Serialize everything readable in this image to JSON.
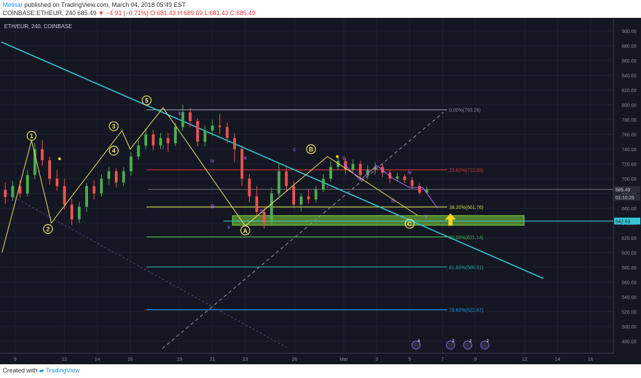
{
  "header": {
    "author": "Melisar",
    "published": "published on TradingView.com, March 04, 2018 05:49 EST",
    "symbol": "COINBASE:ETHEUR, 240",
    "last": "685.49",
    "change": "▼ −4.93 (−0.71%)",
    "ohlc": "O:681.43 H:689.69 L:681.43 C:685.49"
  },
  "legend_symbol": "ETH/EUR, 240, COINBASE",
  "footer": {
    "created": "Created with",
    "brand": "TradingView"
  },
  "colors": {
    "background": "#141722",
    "up_candle": "#26a69a",
    "up_candle_bright": "#4caf50",
    "down_candle": "#ef5350",
    "trendline": "#35c6d6",
    "wave_count": "#f2e56a",
    "sub_wave": "#b86bff",
    "zone": "#7fd63a"
  },
  "chart_data": {
    "type": "candlestick",
    "ylim": [
      480,
      910
    ],
    "y_ticks": [
      "900.00",
      "880.00",
      "860.00",
      "840.00",
      "820.00",
      "800.00",
      "780.00",
      "760.00",
      "740.00",
      "720.00",
      "700.00",
      "680.00",
      "660.00",
      "640.00",
      "620.00",
      "600.00",
      "580.00",
      "560.00",
      "540.00",
      "520.00",
      "500.00",
      "480.00"
    ],
    "x_ticks": [
      "9",
      "12",
      "14",
      "16",
      "19",
      "21",
      "23",
      "26",
      "Mar",
      "3",
      "5",
      "7",
      "9",
      "12",
      "14",
      "16"
    ],
    "price_labels": [
      {
        "text": "685.49",
        "price": 685.49,
        "color": "#8a8f99"
      },
      {
        "text": "01:10:25",
        "price": 675.0,
        "color": "#8a8f99"
      },
      {
        "text": "642.63",
        "price": 642.63,
        "color": "#35c6d6"
      }
    ],
    "fib_levels": [
      {
        "label": "0.00%(793.28)",
        "price": 793.28,
        "color": "#8a8f99"
      },
      {
        "label": "23.60%(712.03)",
        "price": 712.03,
        "color": "#d13b3b"
      },
      {
        "label": "38.20%(661.76)",
        "price": 661.76,
        "color": "#c7d34d"
      },
      {
        "label": "50.00%(621.14)",
        "price": 621.14,
        "color": "#4caf50"
      },
      {
        "label": "61.80%(580.51)",
        "price": 580.51,
        "color": "#26a69a"
      },
      {
        "label": "78.60%(522.67)",
        "price": 522.67,
        "color": "#2196f3"
      }
    ],
    "zone": {
      "low": 637,
      "high": 650
    },
    "wave_labels": [
      {
        "text": "1",
        "date": "Feb 10",
        "price": 758
      },
      {
        "text": "2",
        "date": "Feb 11",
        "price": 632
      },
      {
        "text": "3",
        "date": "Feb 15",
        "price": 771
      },
      {
        "text": "4",
        "date": "Feb 15",
        "price": 738
      },
      {
        "text": "5",
        "date": "Feb 17",
        "price": 806
      },
      {
        "text": "A",
        "date": "Feb 23",
        "price": 630
      },
      {
        "text": "B",
        "date": "Feb 27",
        "price": 740
      },
      {
        "text": "C",
        "date": "Mar 5",
        "price": 639
      }
    ],
    "sub_labels": [
      {
        "text": "i",
        "date": "Feb 18",
        "price": 740
      },
      {
        "text": "ii",
        "date": "Feb 19",
        "price": 786
      },
      {
        "text": "iii",
        "date": "Feb 21",
        "price": 660
      },
      {
        "text": "iv",
        "date": "Feb 21",
        "price": 722
      },
      {
        "text": "v",
        "date": "Feb 22",
        "price": 632
      },
      {
        "text": "a",
        "date": "Feb 23",
        "price": 726
      },
      {
        "text": "b",
        "date": "Feb 24",
        "price": 654
      },
      {
        "text": "c",
        "date": "Feb 26",
        "price": 737
      },
      {
        "text": "i",
        "date": "Feb 28",
        "price": 687
      },
      {
        "text": "ii",
        "date": "Mar 1",
        "price": 725
      },
      {
        "text": "iii",
        "date": "Mar 4",
        "price": 668
      },
      {
        "text": "iv",
        "date": "Mar 5",
        "price": 706
      },
      {
        "text": "v",
        "date": "Mar 6",
        "price": 647
      }
    ],
    "candles": [
      [
        722,
        700,
        730,
        695
      ],
      [
        700,
        685,
        710,
        678
      ],
      [
        685,
        675,
        695,
        666
      ],
      [
        675,
        690,
        697,
        670
      ],
      [
        690,
        680,
        698,
        674
      ],
      [
        680,
        705,
        712,
        676
      ],
      [
        705,
        740,
        748,
        700
      ],
      [
        740,
        725,
        752,
        718
      ],
      [
        725,
        700,
        730,
        692
      ],
      [
        700,
        690,
        712,
        684
      ],
      [
        690,
        665,
        700,
        658
      ],
      [
        665,
        645,
        672,
        637
      ],
      [
        645,
        662,
        668,
        640
      ],
      [
        662,
        690,
        694,
        655
      ],
      [
        690,
        680,
        698,
        672
      ],
      [
        680,
        700,
        706,
        676
      ],
      [
        700,
        710,
        716,
        692
      ],
      [
        710,
        695,
        714,
        688
      ],
      [
        695,
        710,
        716,
        690
      ],
      [
        710,
        730,
        736,
        704
      ],
      [
        730,
        745,
        752,
        726
      ],
      [
        745,
        760,
        768,
        740
      ],
      [
        760,
        745,
        766,
        738
      ],
      [
        745,
        755,
        762,
        740
      ],
      [
        755,
        748,
        762,
        736
      ],
      [
        748,
        770,
        776,
        744
      ],
      [
        770,
        790,
        800,
        765
      ],
      [
        790,
        778,
        796,
        770
      ],
      [
        778,
        750,
        782,
        744
      ],
      [
        750,
        765,
        772,
        744
      ],
      [
        765,
        772,
        780,
        758
      ],
      [
        772,
        770,
        788,
        760
      ],
      [
        770,
        755,
        776,
        748
      ],
      [
        755,
        740,
        762,
        722
      ],
      [
        740,
        700,
        745,
        690
      ],
      [
        700,
        676,
        706,
        668
      ],
      [
        676,
        655,
        690,
        648
      ],
      [
        655,
        640,
        662,
        632
      ],
      [
        640,
        680,
        688,
        636
      ],
      [
        680,
        710,
        722,
        676
      ],
      [
        710,
        690,
        716,
        682
      ],
      [
        690,
        665,
        696,
        660
      ],
      [
        665,
        676,
        680,
        656
      ],
      [
        676,
        672,
        686,
        666
      ],
      [
        672,
        685,
        690,
        668
      ],
      [
        685,
        700,
        706,
        682
      ],
      [
        700,
        716,
        724,
        696
      ],
      [
        716,
        724,
        730,
        712
      ],
      [
        724,
        712,
        728,
        706
      ],
      [
        712,
        720,
        726,
        708
      ],
      [
        720,
        705,
        724,
        698
      ],
      [
        705,
        712,
        718,
        700
      ],
      [
        712,
        716,
        722,
        706
      ],
      [
        716,
        708,
        720,
        702
      ],
      [
        708,
        700,
        712,
        694
      ],
      [
        700,
        703,
        708,
        696
      ],
      [
        703,
        698,
        706,
        694
      ],
      [
        698,
        690,
        702,
        686
      ],
      [
        690,
        681,
        694,
        678
      ],
      [
        681,
        685,
        690,
        680
      ]
    ]
  }
}
